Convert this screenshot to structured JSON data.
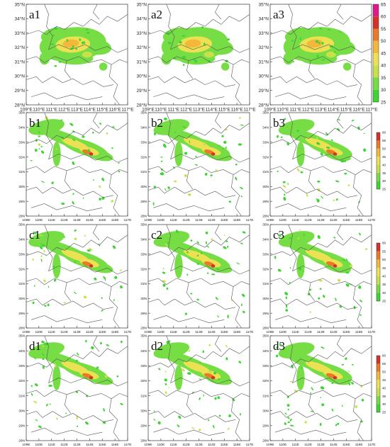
{
  "figure": {
    "colorbar_top": {
      "ticks": [
        "65",
        "60",
        "55",
        "50",
        "45",
        "40",
        "35",
        "30",
        "25"
      ]
    },
    "colorbar_small": {
      "ticks": [
        "60",
        "55",
        "50",
        "45",
        "40",
        "35",
        "30",
        "25"
      ]
    },
    "colors": [
      "#e0188c",
      "#d6302a",
      "#ea7a28",
      "#f3b73a",
      "#ece152",
      "#c8e04a",
      "#76dd45",
      "#3ed431"
    ],
    "top_row": {
      "y_ticks": [
        "35°N",
        "34°N",
        "33°N",
        "32°N",
        "31°N",
        "30°N",
        "29°N",
        "28°N"
      ],
      "x_ticks": [
        "109°E",
        "110°E",
        "111°E",
        "112°E",
        "113°E",
        "114°E",
        "115°E",
        "116°E",
        "117°E"
      ]
    },
    "lower_rows": {
      "y_ticks": [
        "35N",
        "34N",
        "33N",
        "32N",
        "31N",
        "30N",
        "29N",
        "28N"
      ],
      "x_ticks": [
        "109E",
        "110E",
        "111E",
        "112E",
        "113E",
        "114E",
        "115E",
        "116E",
        "117E"
      ]
    },
    "panels": [
      {
        "label": "a1"
      },
      {
        "label": "a2"
      },
      {
        "label": "a3"
      },
      {
        "label": "b1"
      },
      {
        "label": "b2"
      },
      {
        "label": "b3"
      },
      {
        "label": "c1"
      },
      {
        "label": "c2"
      },
      {
        "label": "c3"
      },
      {
        "label": "d1"
      },
      {
        "label": "d2"
      },
      {
        "label": "d3"
      }
    ]
  }
}
